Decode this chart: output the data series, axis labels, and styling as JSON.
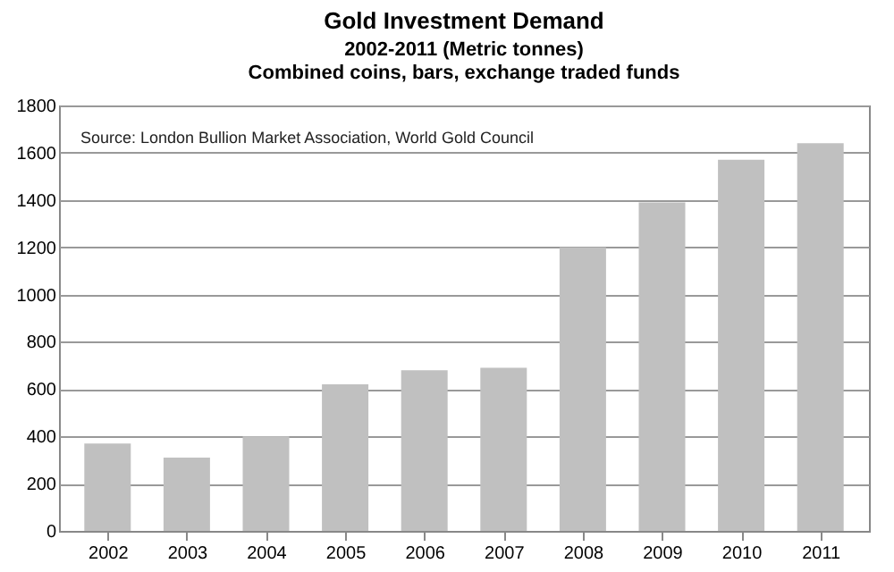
{
  "chart_data": {
    "type": "bar",
    "title": "Gold Investment Demand",
    "subtitle": "2002-2011 (Metric tonnes)\nCombined coins, bars, exchange traded funds",
    "categories": [
      "2002",
      "2003",
      "2004",
      "2005",
      "2006",
      "2007",
      "2008",
      "2009",
      "2010",
      "2011"
    ],
    "values": [
      370,
      310,
      400,
      620,
      680,
      690,
      1200,
      1390,
      1570,
      1640
    ],
    "color": "#c0c0c0",
    "ylim": [
      0,
      1800
    ],
    "yticks": [
      0,
      200,
      400,
      600,
      800,
      1000,
      1200,
      1400,
      1600,
      1800
    ],
    "grid": "y",
    "annotations": [
      "Source: London Bullion Market Association, World Gold Council"
    ]
  }
}
